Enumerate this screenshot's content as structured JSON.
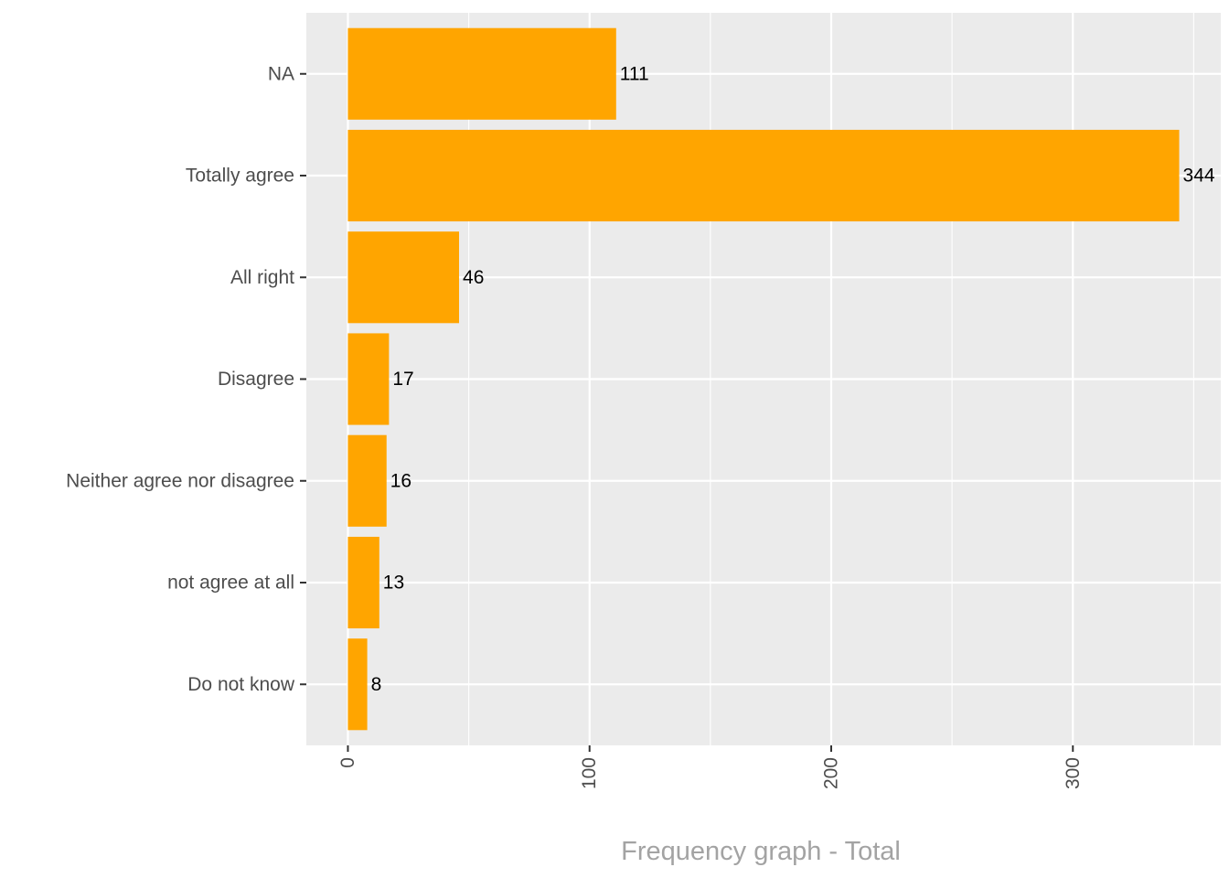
{
  "chart_data": {
    "type": "bar",
    "orientation": "horizontal",
    "categories": [
      "NA",
      "Totally agree",
      "All right",
      "Disagree",
      "Neither agree nor disagree",
      "not agree at all",
      "Do not know"
    ],
    "values": [
      111,
      344,
      46,
      17,
      16,
      13,
      8
    ],
    "value_labels": [
      "111",
      "344",
      "46",
      "17",
      "16",
      "13",
      "8"
    ],
    "xlabel": "Frequency graph - Total",
    "ylabel": "",
    "xlim": [
      -17.2,
      361.2
    ],
    "x_ticks": [
      0,
      100,
      200,
      300
    ],
    "x_tick_labels": [
      "0",
      "100",
      "200",
      "300"
    ],
    "x_tick_label_rotation": "vertical",
    "grid": true,
    "legend": "none",
    "colors": {
      "bar": "#FFA500",
      "panel_background": "#EBEBEB",
      "grid": "#FFFFFF",
      "axis_text": "#4D4D4D",
      "value_text": "#000000",
      "axis_title": "#A3A3A3"
    }
  }
}
